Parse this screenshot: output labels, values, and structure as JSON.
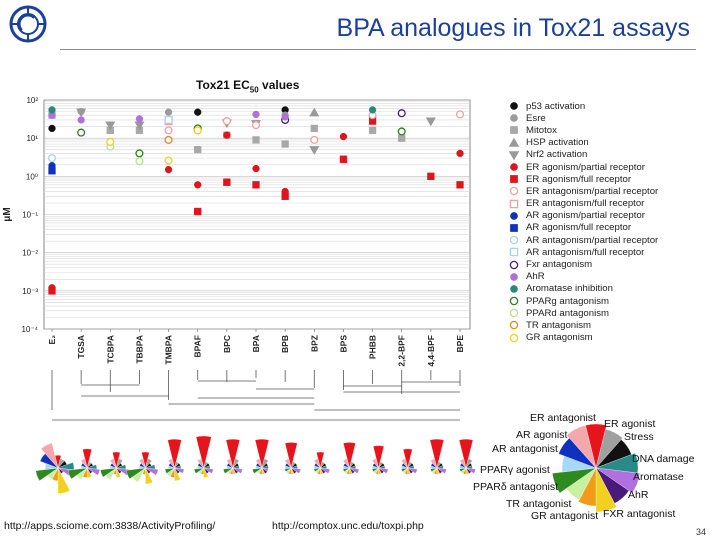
{
  "slide": {
    "title": "BPA analogues in Tox21 assays",
    "footer_left": "http://apps.sciome.com:3838/ActivityProfiling/",
    "footer_center": "http://comptox.unc.edu/toxpi.php",
    "page_number": "34"
  },
  "chart_data": {
    "type": "scatter",
    "title": "Tox21 EC",
    "title_sub": "50",
    "title_suffix": " values",
    "ylabel": "μM",
    "yscale": "log",
    "ylim": [
      0.0001,
      100
    ],
    "ytick_labels": [
      "10²",
      "10¹",
      "10⁰",
      "10⁻¹",
      "10⁻²",
      "10⁻³",
      "10⁻⁴"
    ],
    "categories": [
      "E₂",
      "TGSA",
      "TCBPA",
      "TBBPA",
      "TMBPA",
      "BPAF",
      "BPC",
      "BPA",
      "BPB",
      "BPZ",
      "BPS",
      "PHBB",
      "2,2-BPF",
      "4,4-BPF",
      "BPE"
    ],
    "series": [
      {
        "name": "p53 activation",
        "color": "#111111",
        "marker": "circle-filled",
        "points": [
          [
            "E₂",
            18
          ],
          [
            "BPAF",
            48
          ],
          [
            "BPB",
            55
          ]
        ]
      },
      {
        "name": "Esre",
        "color": "#9a9a9a",
        "marker": "circle-filled",
        "points": [
          [
            "TGSA",
            50
          ],
          [
            "TMBPA",
            48
          ],
          [
            "BPB",
            40
          ]
        ]
      },
      {
        "name": "Mitotox",
        "color": "#a8a8a8",
        "marker": "square-filled",
        "points": [
          [
            "E₂",
            40
          ],
          [
            "TCBPA",
            16
          ],
          [
            "TBBPA",
            16
          ],
          [
            "BPAF",
            5
          ],
          [
            "BPC",
            12
          ],
          [
            "BPA",
            9
          ],
          [
            "BPB",
            7
          ],
          [
            "BPZ",
            18
          ],
          [
            "PHBB",
            16
          ],
          [
            "2,2-BPF",
            10
          ]
        ]
      },
      {
        "name": "HSP activation",
        "color": "#999999",
        "marker": "triangle-up",
        "points": [
          [
            "BPZ",
            46
          ]
        ]
      },
      {
        "name": "Nrf2 activation",
        "color": "#999999",
        "marker": "triangle-down",
        "points": [
          [
            "TGSA",
            48
          ],
          [
            "TCBPA",
            22
          ],
          [
            "TBBPA",
            22
          ],
          [
            "BPC",
            25
          ],
          [
            "BPA",
            24
          ],
          [
            "BPZ",
            5
          ],
          [
            "4,4-BPF",
            28
          ]
        ]
      },
      {
        "name": "ER agonism/partial receptor",
        "color": "#e0141c",
        "marker": "circle-filled",
        "points": [
          [
            "E₂",
            0.0012
          ],
          [
            "TMBPA",
            1.5
          ],
          [
            "BPAF",
            0.6
          ],
          [
            "BPC",
            12
          ],
          [
            "BPA",
            1.6
          ],
          [
            "BPB",
            0.4
          ],
          [
            "BPS",
            11
          ],
          [
            "PHBB",
            35
          ],
          [
            "BPE",
            4
          ]
        ]
      },
      {
        "name": "ER agonism/full receptor",
        "color": "#e0141c",
        "marker": "square-filled",
        "points": [
          [
            "E₂",
            0.001
          ],
          [
            "BPAF",
            0.12
          ],
          [
            "BPC",
            0.7
          ],
          [
            "BPA",
            0.6
          ],
          [
            "BPB",
            0.3
          ],
          [
            "BPS",
            2.8
          ],
          [
            "PHBB",
            28
          ],
          [
            "4,4-BPF",
            1
          ],
          [
            "BPE",
            0.6
          ]
        ]
      },
      {
        "name": "ER antagonism/partial receptor",
        "color": "#f0a0a4",
        "marker": "circle-open",
        "points": [
          [
            "TMBPA",
            16
          ],
          [
            "BPC",
            28
          ],
          [
            "BPA",
            22
          ],
          [
            "BPZ",
            9
          ],
          [
            "PHBB",
            40
          ],
          [
            "BPE",
            42
          ]
        ]
      },
      {
        "name": "ER antagonism/full receptor",
        "color": "#f0a0a4",
        "marker": "square-open",
        "points": [
          [
            "TMBPA",
            28
          ]
        ]
      },
      {
        "name": "AR agonism/partial receptor",
        "color": "#1030c0",
        "marker": "circle-filled",
        "points": [
          [
            "E₂",
            1.9
          ]
        ]
      },
      {
        "name": "AR agonism/full receptor",
        "color": "#1030c0",
        "marker": "square-filled",
        "points": [
          [
            "E₂",
            1.4
          ]
        ]
      },
      {
        "name": "AR antagonism/partial receptor",
        "color": "#a8d0f0",
        "marker": "circle-open",
        "points": [
          [
            "E₂",
            3
          ]
        ]
      },
      {
        "name": "AR antagonism/full receptor",
        "color": "#a8d0f0",
        "marker": "square-open",
        "points": [
          [
            "TMBPA",
            30
          ]
        ]
      },
      {
        "name": "Fxr antagonism",
        "color": "#4a1a7a",
        "marker": "circle-open",
        "points": [
          [
            "BPB",
            30
          ],
          [
            "2,2-BPF",
            45
          ]
        ]
      },
      {
        "name": "AhR",
        "color": "#b070e0",
        "marker": "circle-filled",
        "points": [
          [
            "E₂",
            40
          ],
          [
            "TGSA",
            30
          ],
          [
            "TBBPA",
            32
          ],
          [
            "BPAF",
            18
          ],
          [
            "BPA",
            42
          ],
          [
            "BPB",
            36
          ]
        ]
      },
      {
        "name": "Aromatase inhibition",
        "color": "#2a8a7a",
        "marker": "circle-filled",
        "points": [
          [
            "E₂",
            55
          ],
          [
            "PHBB",
            55
          ]
        ]
      },
      {
        "name": "PPARg antagonism",
        "color": "#2e7d1e",
        "marker": "circle-open",
        "points": [
          [
            "TGSA",
            14
          ],
          [
            "TBBPA",
            4
          ],
          [
            "BPAF",
            18
          ],
          [
            "2,2-BPF",
            15
          ]
        ]
      },
      {
        "name": "PPARd antagonism",
        "color": "#b8e08a",
        "marker": "circle-open",
        "points": [
          [
            "TCBPA",
            6
          ],
          [
            "TBBPA",
            2.5
          ]
        ]
      },
      {
        "name": "TR antagonism",
        "color": "#e08a1a",
        "marker": "circle-open",
        "points": [
          [
            "TMBPA",
            9
          ],
          [
            "BPAF",
            16
          ]
        ]
      },
      {
        "name": "GR antagonism",
        "color": "#f2d020",
        "marker": "circle-open",
        "points": [
          [
            "TCBPA",
            8
          ],
          [
            "TMBPA",
            2.6
          ],
          [
            "BPAF",
            16
          ]
        ]
      }
    ],
    "legend_position": "right",
    "grid": true
  },
  "toxpi": {
    "labels": [
      "ER antagonist",
      "ER agonist",
      "AR agonist",
      "Stress",
      "AR antagonist",
      "DNA damage",
      "PPARγ agonist",
      "Aromatase",
      "PPARδ antagonist",
      "AhR",
      "TR antagonist",
      "GR antagonist",
      "FXR antagonist"
    ],
    "slices": [
      {
        "name": "ER agonist",
        "color": "#e8141c"
      },
      {
        "name": "Stress",
        "color": "#a0a0a0"
      },
      {
        "name": "DNA damage",
        "color": "#111111"
      },
      {
        "name": "Aromatase",
        "color": "#2a8a8a"
      },
      {
        "name": "AhR",
        "color": "#b070e0"
      },
      {
        "name": "FXR antagonist",
        "color": "#4a1a7a"
      },
      {
        "name": "GR antagonist",
        "color": "#f2d020"
      },
      {
        "name": "TR antagonist",
        "color": "#f29a1a"
      },
      {
        "name": "PPARδ antagonist",
        "color": "#c8f0a0"
      },
      {
        "name": "PPARγ agonist",
        "color": "#2e8a1e"
      },
      {
        "name": "AR antagonist",
        "color": "#a8d8f8"
      },
      {
        "name": "AR agonist",
        "color": "#1030c0"
      },
      {
        "name": "ER antagonist",
        "color": "#f5a8ac"
      }
    ]
  },
  "icons": {
    "logo": "organization-logo-icon"
  }
}
